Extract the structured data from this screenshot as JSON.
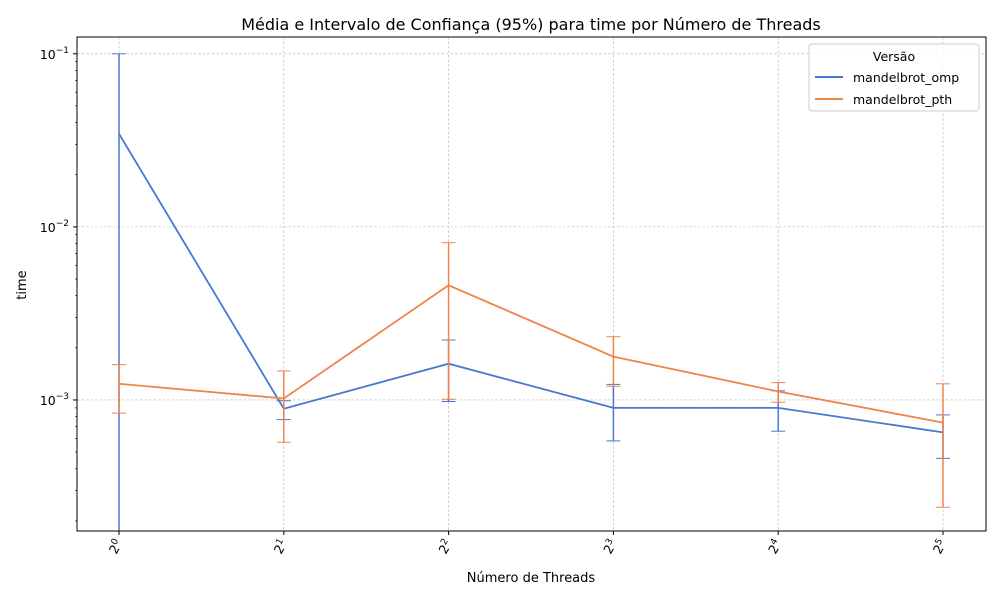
{
  "chart_data": {
    "type": "line",
    "title": "Média e Intervalo de Confiança (95%) para time por Número de Threads",
    "xlabel": "Número de Threads",
    "ylabel": "time",
    "x": [
      1,
      2,
      4,
      8,
      16,
      32
    ],
    "x_tick_labels": [
      {
        "base": "2",
        "exp": "0"
      },
      {
        "base": "2",
        "exp": "1"
      },
      {
        "base": "2",
        "exp": "2"
      },
      {
        "base": "2",
        "exp": "3"
      },
      {
        "base": "2",
        "exp": "4"
      },
      {
        "base": "2",
        "exp": "5"
      }
    ],
    "y_scale": "log",
    "ylim": [
      0.000175,
      0.125
    ],
    "y_ticks": [
      {
        "value": 0.1,
        "base": "10",
        "exp": "−1"
      },
      {
        "value": 0.01,
        "base": "10",
        "exp": "−2"
      },
      {
        "value": 0.001,
        "base": "10",
        "exp": "−3"
      }
    ],
    "grid": true,
    "legend": {
      "title": "Versão",
      "placement": "top-right"
    },
    "series": [
      {
        "name": "mandelbrot_omp",
        "color": "#4878d0",
        "values": [
          0.0345,
          0.00089,
          0.00162,
          0.0009,
          0.0009,
          0.00065
        ],
        "ci_low": [
          0.00015,
          0.00077,
          0.00098,
          0.00058,
          0.00066,
          0.00046
        ],
        "ci_high": [
          0.1,
          0.00099,
          0.00222,
          0.00123,
          0.00113,
          0.00082
        ]
      },
      {
        "name": "mandelbrot_pth",
        "color": "#ee854a",
        "values": [
          0.00124,
          0.00102,
          0.0046,
          0.00178,
          0.00112,
          0.00074
        ],
        "ci_low": [
          0.00084,
          0.00057,
          0.00101,
          0.0012,
          0.00097,
          0.00024
        ],
        "ci_high": [
          0.0016,
          0.00147,
          0.0081,
          0.00232,
          0.00126,
          0.00124
        ]
      }
    ]
  }
}
